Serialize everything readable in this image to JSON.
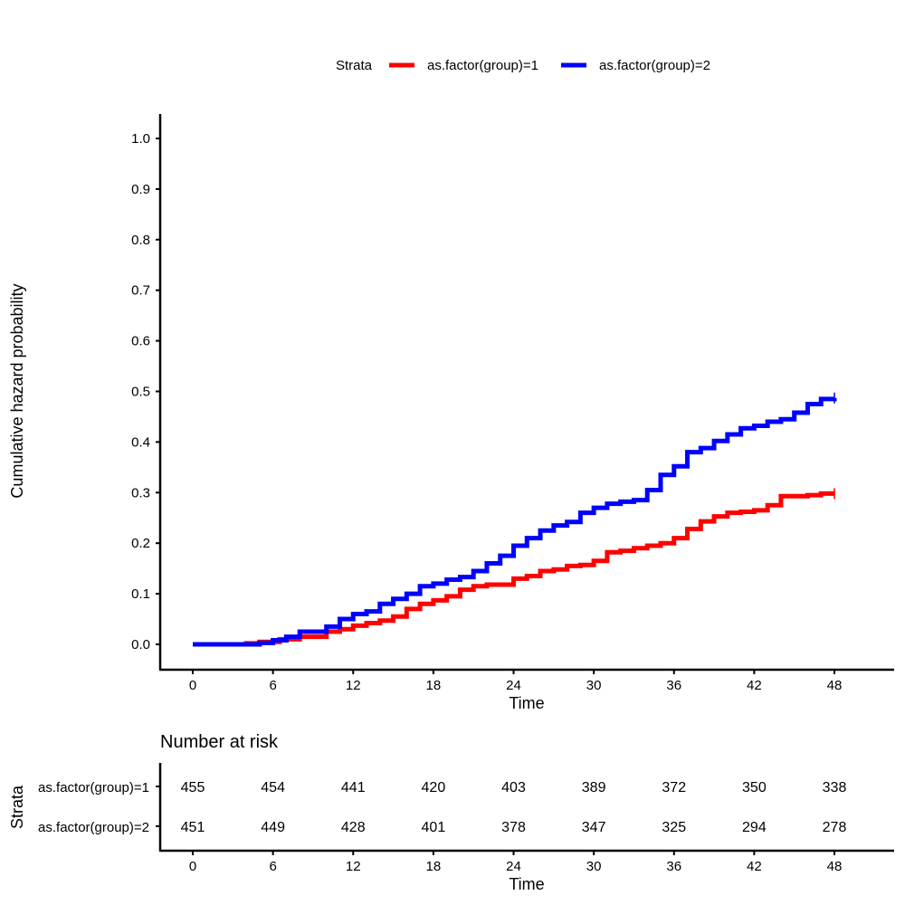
{
  "chart_data": {
    "type": "line",
    "subtype": "step",
    "legend": {
      "title": "Strata",
      "position": "top"
    },
    "xlabel": "Time",
    "ylabel": "Cumulative hazard probability",
    "xlim": [
      -5,
      52
    ],
    "ylim": [
      -0.05,
      1.05
    ],
    "x_ticks": [
      0,
      6,
      12,
      18,
      24,
      30,
      36,
      42,
      48
    ],
    "y_ticks": [
      "0.0",
      "0.1",
      "0.2",
      "0.3",
      "0.4",
      "0.5",
      "0.6",
      "0.7",
      "0.8",
      "0.9",
      "1.0"
    ],
    "series": [
      {
        "name": "as.factor(group)=1",
        "color": "#FF0000",
        "x": [
          0,
          4,
          5,
          6.5,
          8,
          10,
          11,
          12,
          13,
          14,
          15,
          16,
          17,
          18,
          19,
          20,
          21,
          22,
          24,
          25,
          26,
          27,
          28,
          29,
          30,
          31,
          32,
          33,
          34,
          35,
          36,
          37,
          38,
          39,
          40,
          41,
          42,
          43,
          44,
          46,
          47,
          48
        ],
        "y": [
          0,
          0.002,
          0.005,
          0.01,
          0.015,
          0.025,
          0.03,
          0.037,
          0.042,
          0.047,
          0.055,
          0.07,
          0.08,
          0.087,
          0.095,
          0.108,
          0.115,
          0.118,
          0.13,
          0.135,
          0.145,
          0.148,
          0.155,
          0.157,
          0.165,
          0.182,
          0.185,
          0.19,
          0.195,
          0.2,
          0.21,
          0.228,
          0.243,
          0.253,
          0.26,
          0.262,
          0.265,
          0.275,
          0.293,
          0.295,
          0.298,
          0.298
        ]
      },
      {
        "name": "as.factor(group)=2",
        "color": "#0000FF",
        "x": [
          0,
          5,
          6,
          7,
          8,
          10,
          11,
          12,
          13,
          14,
          15,
          16,
          17,
          18,
          19,
          20,
          21,
          22,
          23,
          24,
          25,
          26,
          27,
          28,
          29,
          30,
          31,
          32,
          33,
          34,
          35,
          36,
          37,
          38,
          39,
          40,
          41,
          42,
          43,
          44,
          45,
          46,
          47,
          48
        ],
        "y": [
          0,
          0.003,
          0.008,
          0.015,
          0.025,
          0.035,
          0.05,
          0.06,
          0.065,
          0.08,
          0.09,
          0.1,
          0.115,
          0.12,
          0.128,
          0.133,
          0.145,
          0.16,
          0.175,
          0.195,
          0.21,
          0.225,
          0.235,
          0.242,
          0.26,
          0.27,
          0.278,
          0.282,
          0.285,
          0.305,
          0.335,
          0.352,
          0.38,
          0.388,
          0.402,
          0.415,
          0.427,
          0.432,
          0.44,
          0.445,
          0.458,
          0.475,
          0.485,
          0.487
        ]
      }
    ]
  },
  "risk_table": {
    "title": "Number at risk",
    "ylabel": "Strata",
    "xlabel": "Time",
    "times": [
      0,
      6,
      12,
      18,
      24,
      30,
      36,
      42,
      48
    ],
    "rows": [
      {
        "label": "as.factor(group)=1",
        "values": [
          455,
          454,
          441,
          420,
          403,
          389,
          372,
          350,
          338
        ]
      },
      {
        "label": "as.factor(group)=2",
        "values": [
          451,
          449,
          428,
          401,
          378,
          347,
          325,
          294,
          278
        ]
      }
    ]
  }
}
